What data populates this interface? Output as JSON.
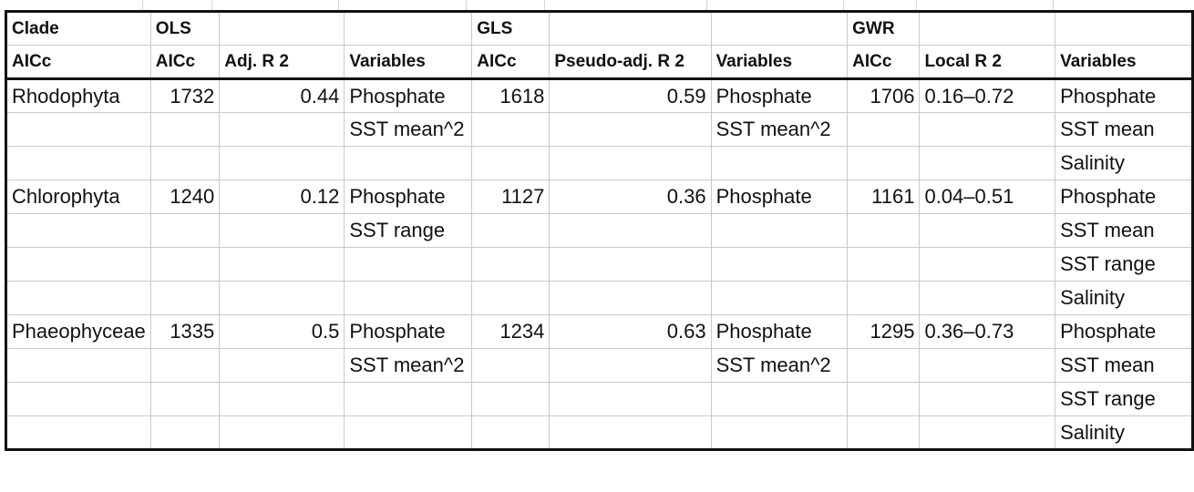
{
  "header": {
    "row1": [
      "Clade",
      "OLS",
      "",
      "",
      "GLS",
      "",
      "",
      "GWR",
      "",
      ""
    ],
    "row2": [
      "AICc",
      "AICc",
      "Adj. R 2",
      "Variables",
      "AICc",
      "Pseudo-adj. R 2",
      "Variables",
      "AICc",
      "Local R 2",
      "Variables"
    ]
  },
  "rows": [
    [
      "Rhodophyta",
      "1732",
      "0.44",
      "Phosphate",
      "1618",
      "0.59",
      "Phosphate",
      "1706",
      "0.16–0.72",
      "Phosphate"
    ],
    [
      "",
      "",
      "",
      "SST mean^2",
      "",
      "",
      "SST mean^2",
      "",
      "",
      "SST mean"
    ],
    [
      "",
      "",
      "",
      "",
      "",
      "",
      "",
      "",
      "",
      "Salinity"
    ],
    [
      "Chlorophyta",
      "1240",
      "0.12",
      "Phosphate",
      "1127",
      "0.36",
      "Phosphate",
      "1161",
      "0.04–0.51",
      "Phosphate"
    ],
    [
      "",
      "",
      "",
      "SST range",
      "",
      "",
      "",
      "",
      "",
      "SST mean"
    ],
    [
      "",
      "",
      "",
      "",
      "",
      "",
      "",
      "",
      "",
      "SST range"
    ],
    [
      "",
      "",
      "",
      "",
      "",
      "",
      "",
      "",
      "",
      "Salinity"
    ],
    [
      "Phaeophyceae",
      "1335",
      "0.5",
      "Phosphate",
      "1234",
      "0.63",
      "Phosphate",
      "1295",
      "0.36–0.73",
      "Phosphate"
    ],
    [
      "",
      "",
      "",
      "SST mean^2",
      "",
      "",
      "SST mean^2",
      "",
      "",
      "SST mean"
    ],
    [
      "",
      "",
      "",
      "",
      "",
      "",
      "",
      "",
      "",
      "SST range"
    ],
    [
      "",
      "",
      "",
      "",
      "",
      "",
      "",
      "",
      "",
      "Salinity"
    ]
  ]
}
